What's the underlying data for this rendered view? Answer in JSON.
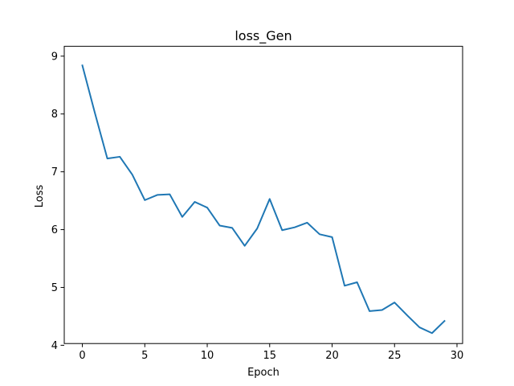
{
  "chart_data": {
    "type": "line",
    "title": "loss_Gen",
    "xlabel": "Epoch",
    "ylabel": "Loss",
    "xlim": [
      -1.45,
      30.45
    ],
    "ylim": [
      4.03,
      9.17
    ],
    "xticks": [
      0,
      5,
      10,
      15,
      20,
      25,
      30
    ],
    "yticks": [
      4,
      5,
      6,
      7,
      8,
      9
    ],
    "grid": false,
    "series": [
      {
        "color": "#1f77b4",
        "x": [
          0,
          1,
          2,
          3,
          4,
          5,
          6,
          7,
          8,
          9,
          10,
          11,
          12,
          13,
          14,
          15,
          16,
          17,
          18,
          19,
          20,
          21,
          22,
          23,
          24,
          25,
          26,
          27,
          28,
          29
        ],
        "values": [
          8.84,
          8.02,
          7.23,
          7.26,
          6.95,
          6.51,
          6.6,
          6.61,
          6.22,
          6.48,
          6.38,
          6.07,
          6.03,
          5.72,
          6.02,
          6.53,
          5.99,
          6.04,
          6.12,
          5.92,
          5.87,
          5.03,
          5.09,
          4.59,
          4.61,
          4.74,
          4.52,
          4.31,
          4.21,
          4.42
        ]
      }
    ]
  }
}
